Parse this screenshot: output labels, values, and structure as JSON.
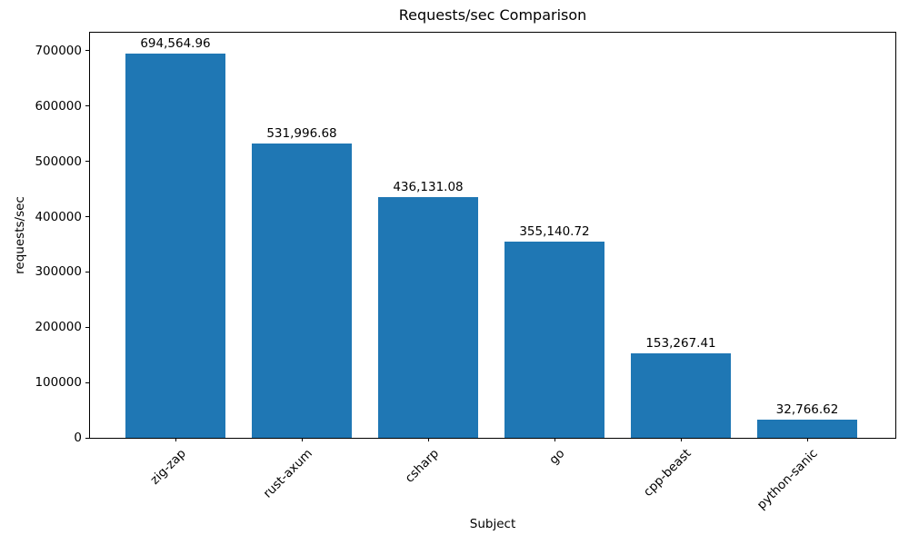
{
  "chart_data": {
    "type": "bar",
    "title": "Requests/sec Comparison",
    "xlabel": "Subject",
    "ylabel": "requests/sec",
    "categories": [
      "zig-zap",
      "rust-axum",
      "csharp",
      "go",
      "cpp-beast",
      "python-sanic"
    ],
    "values": [
      694564.96,
      531996.68,
      436131.08,
      355140.72,
      153267.41,
      32766.62
    ],
    "bar_value_labels": [
      "694,564.96",
      "531,996.68",
      "436,131.08",
      "355,140.72",
      "153,267.41",
      "32,766.62"
    ],
    "yticks": [
      0,
      100000,
      200000,
      300000,
      400000,
      500000,
      600000,
      700000
    ],
    "ytick_labels": [
      "0",
      "100000",
      "200000",
      "300000",
      "400000",
      "500000",
      "600000",
      "700000"
    ],
    "ylim": [
      0,
      732700
    ],
    "bar_color": "#1f77b4",
    "grid": false,
    "legend_position": null
  }
}
